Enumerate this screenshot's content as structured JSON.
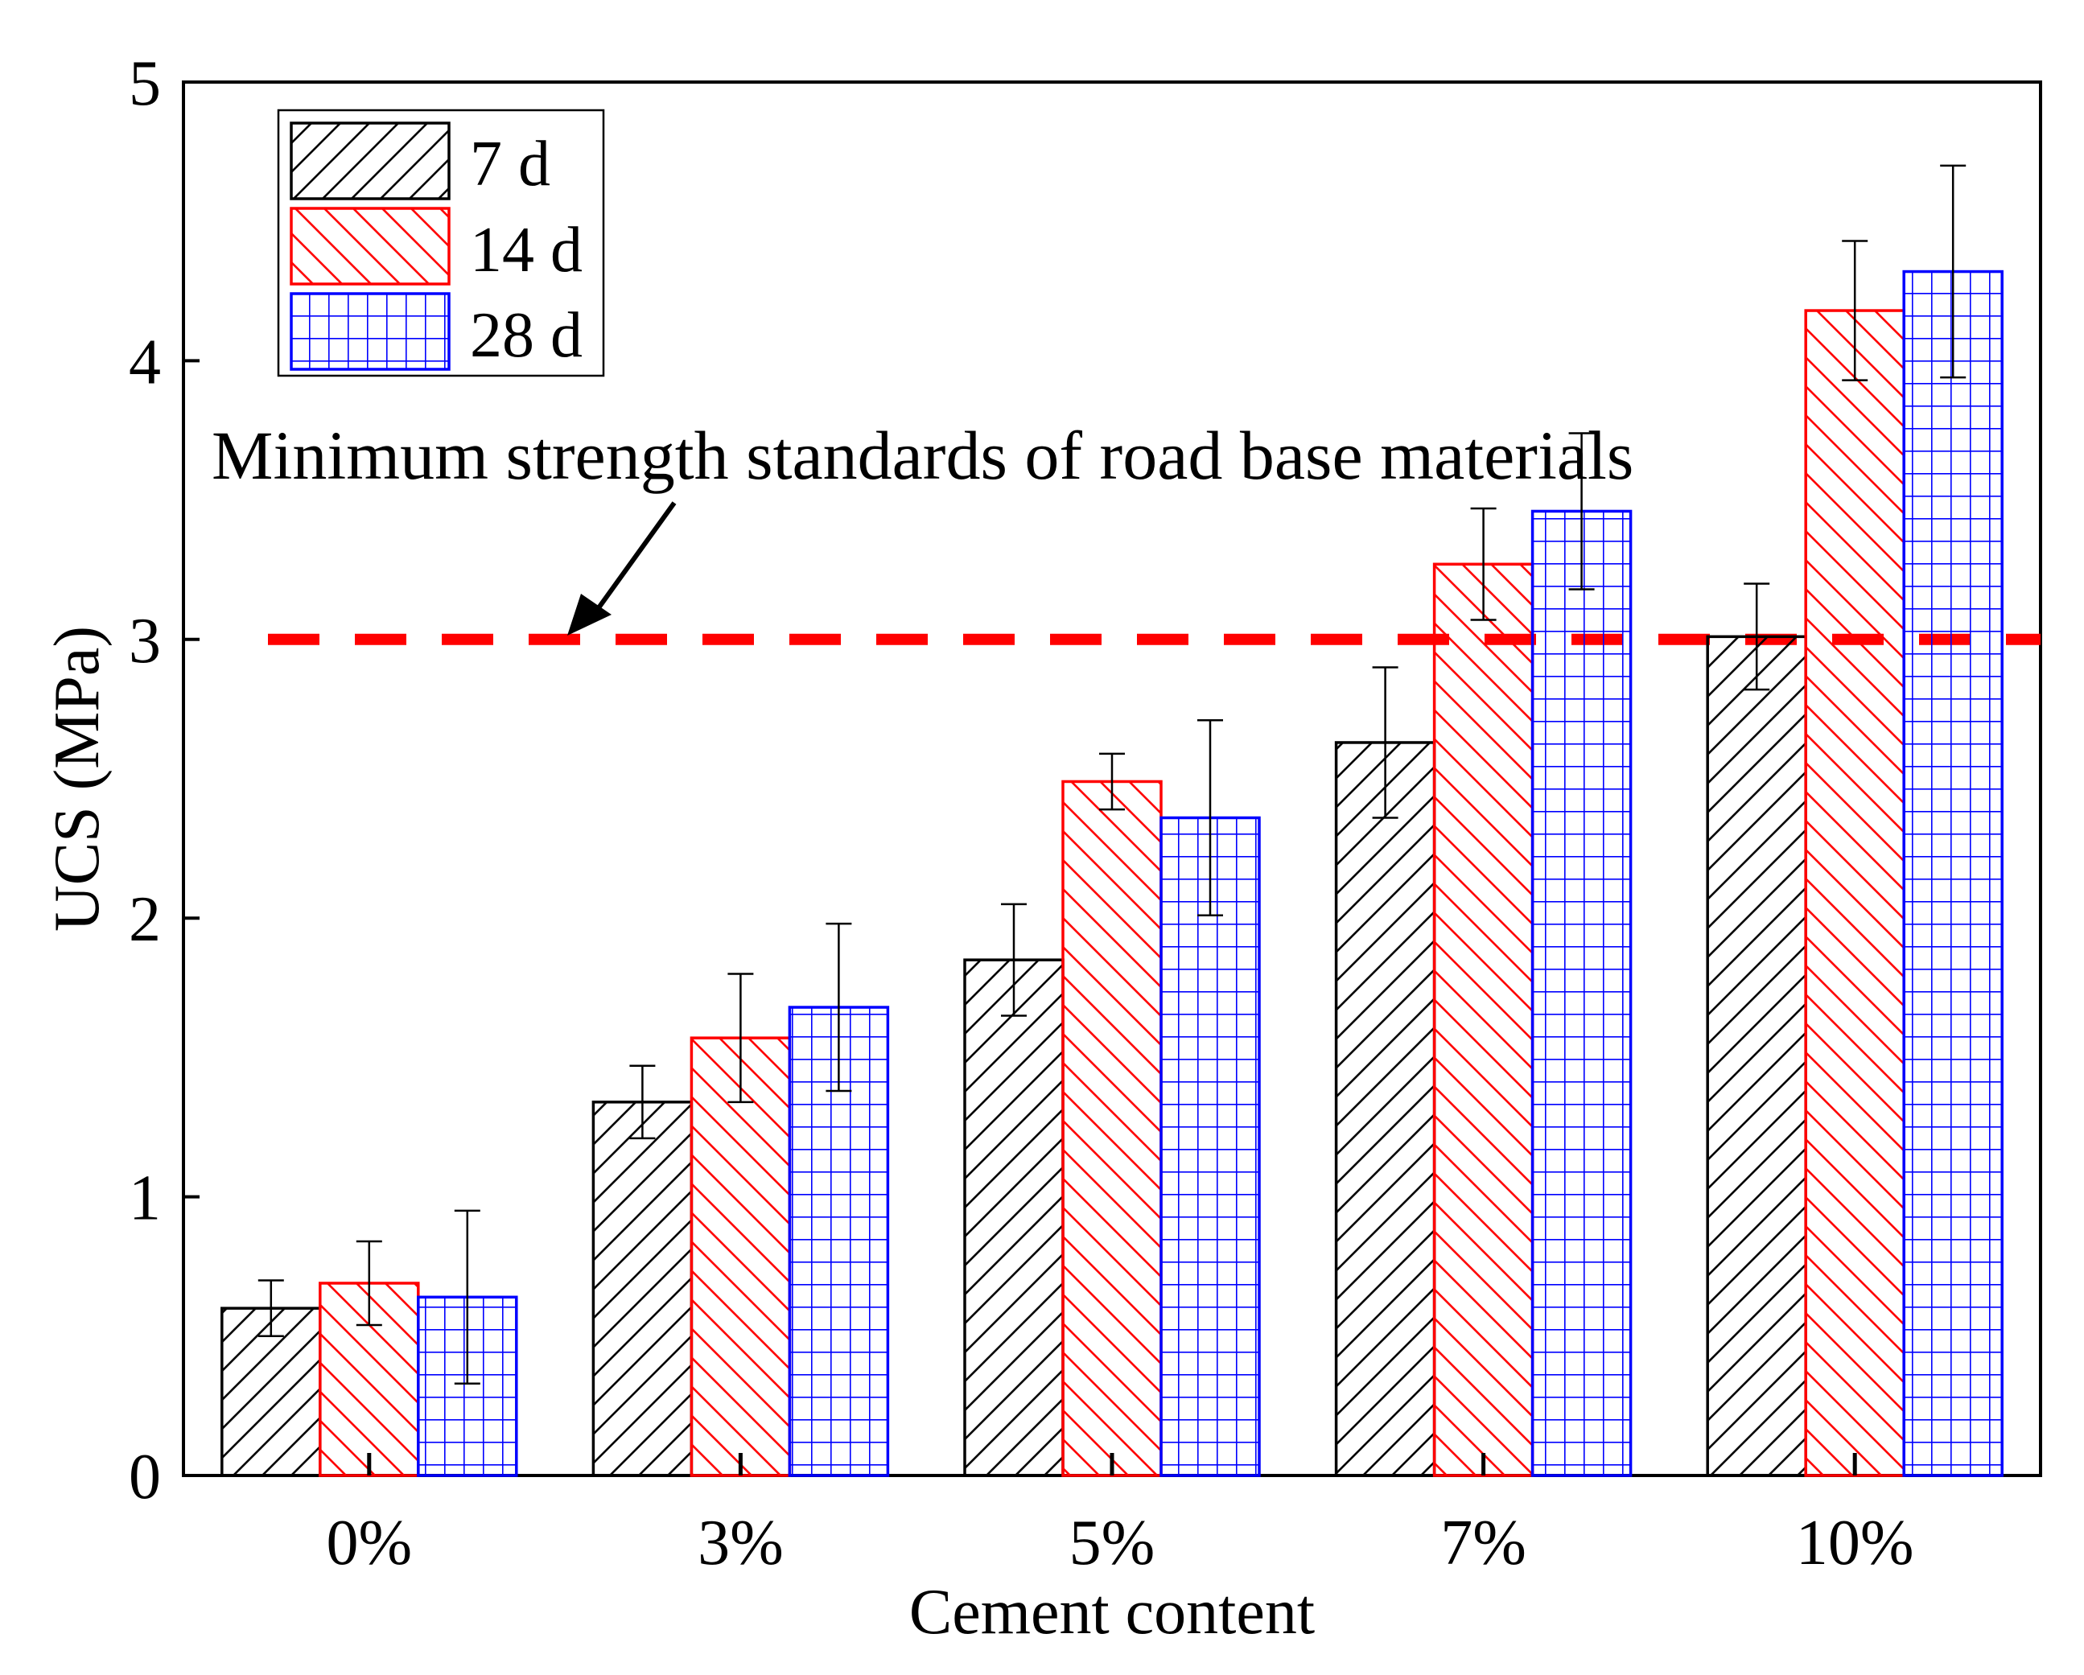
{
  "chart_data": {
    "type": "bar",
    "title": "",
    "xlabel": "Cement content",
    "ylabel": "UCS (MPa)",
    "ylim": [
      0,
      5
    ],
    "yticks": [
      "0",
      "1",
      "2",
      "3",
      "4",
      "5"
    ],
    "categories": [
      "0%",
      "3%",
      "5%",
      "7%",
      "10%"
    ],
    "series": [
      {
        "name": "7 d",
        "color": "#000000",
        "pattern": "diagonal-up",
        "values": [
          0.6,
          1.34,
          1.85,
          2.63,
          3.01
        ],
        "errors": [
          0.1,
          0.13,
          0.2,
          0.27,
          0.19
        ]
      },
      {
        "name": "14 d",
        "color": "#ff0000",
        "pattern": "diagonal-down",
        "values": [
          0.69,
          1.57,
          2.49,
          3.27,
          4.18
        ],
        "errors": [
          0.15,
          0.23,
          0.1,
          0.2,
          0.25
        ]
      },
      {
        "name": "28 d",
        "color": "#0000ff",
        "pattern": "grid",
        "values": [
          0.64,
          1.68,
          2.36,
          3.46,
          4.32
        ],
        "errors": [
          0.31,
          0.3,
          0.35,
          0.28,
          0.38
        ]
      }
    ],
    "reference_line": {
      "value": 3.0,
      "color": "#ff0000",
      "style": "dashed"
    },
    "annotation": "Minimum strength standards of road base materials",
    "legend_position": "top-left"
  }
}
